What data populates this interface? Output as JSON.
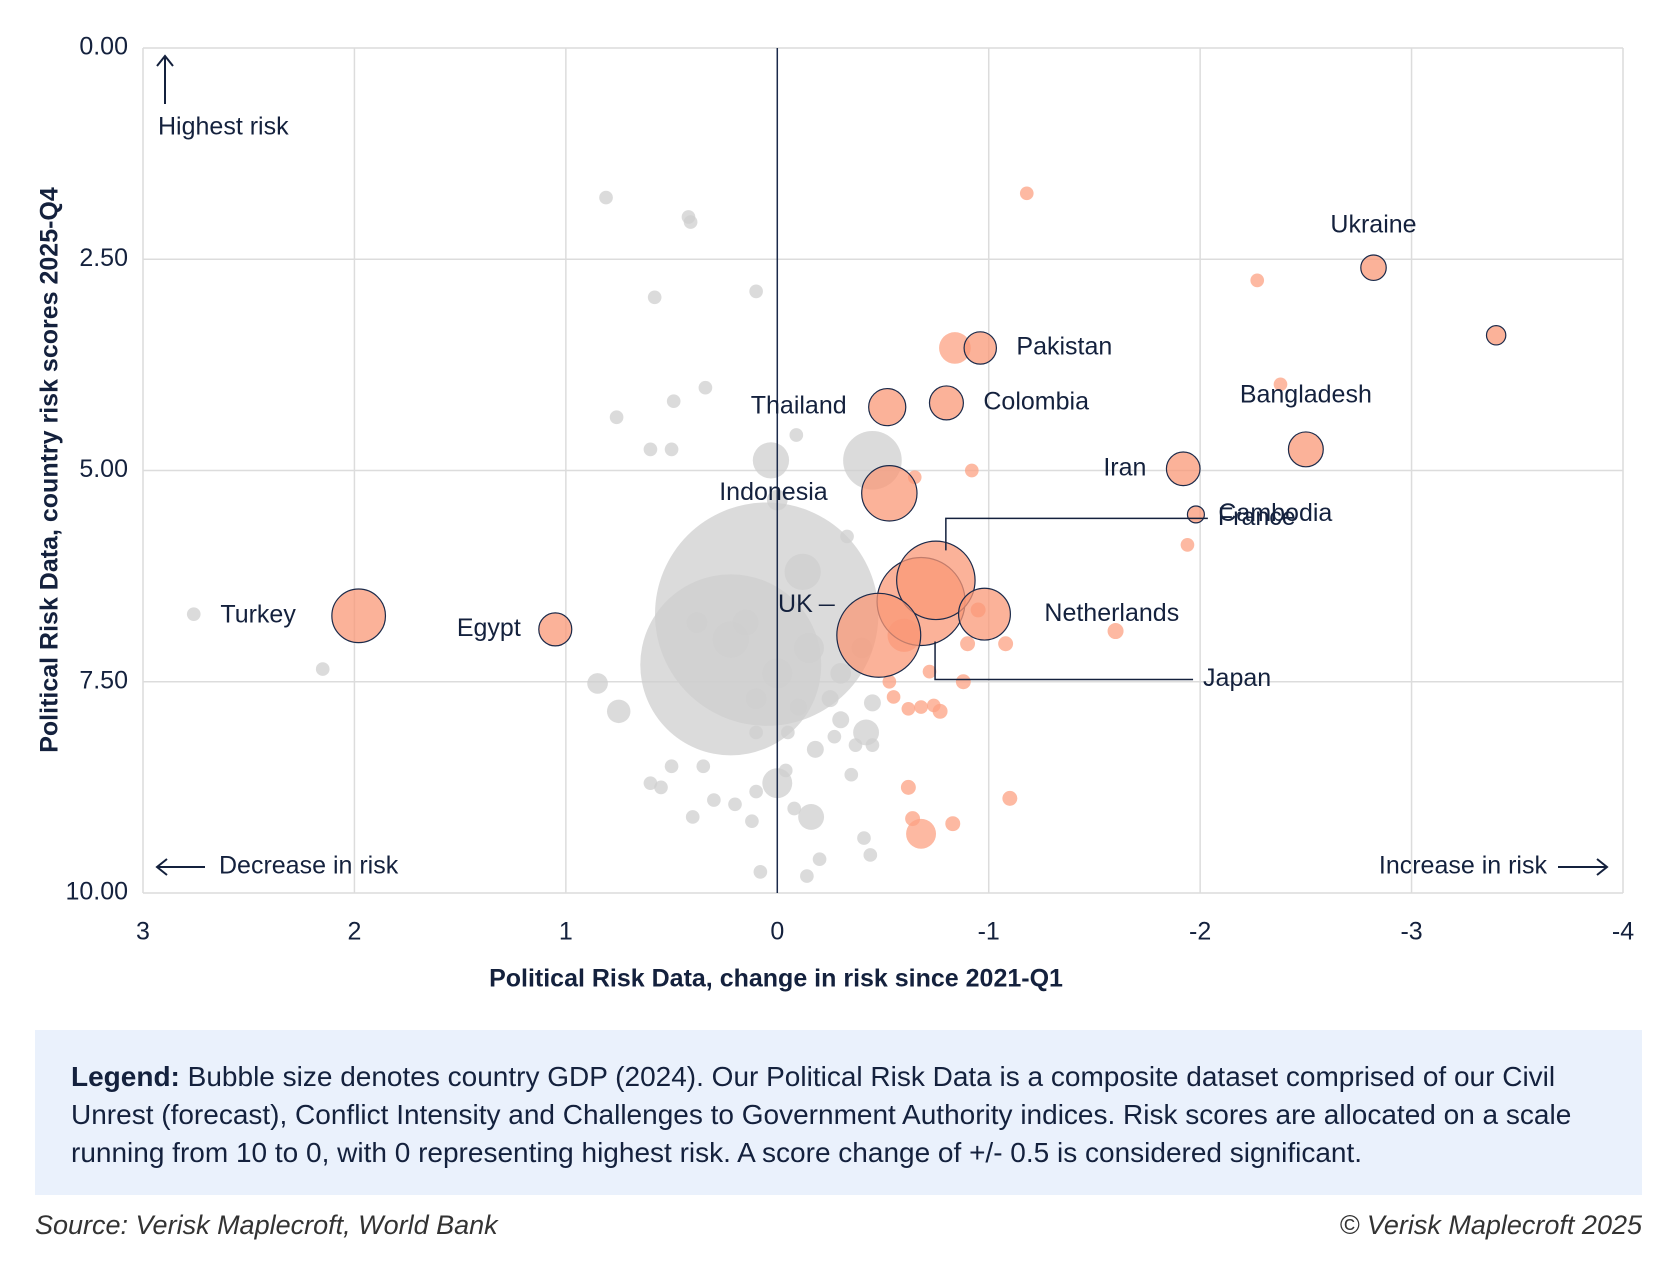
{
  "chart_data": {
    "type": "scatter",
    "y_axis_label": "Political Risk Data, country risk scores 2025-Q4",
    "x_axis_label": "Political Risk Data, change in risk since 2021-Q1",
    "annotations": {
      "top_left": "Highest risk",
      "bottom_left": "Decrease in risk",
      "bottom_right": "Increase in risk"
    },
    "xlim": [
      3,
      -4
    ],
    "ylim": [
      0,
      10
    ],
    "xticks": [
      3,
      2,
      1,
      0,
      -1,
      -2,
      -3,
      -4
    ],
    "yticks": [
      {
        "value": 0,
        "label": "0.00"
      },
      {
        "value": 2.5,
        "label": "2.50"
      },
      {
        "value": 5,
        "label": "5.00"
      },
      {
        "value": 7.5,
        "label": "7.50"
      },
      {
        "value": 10,
        "label": "10.00"
      }
    ],
    "grid": true,
    "series": [
      {
        "color": "#cfcfcf",
        "x": [
          0.05,
          0.22,
          -0.45,
          0.03,
          -0.12,
          0.0,
          0.81,
          0.42,
          0.41,
          0.58,
          0.1,
          0.34,
          0.49,
          0.76,
          0.6,
          0.5,
          -0.09,
          -0.33,
          2.76,
          2.15,
          0.85,
          0.75,
          0.38,
          0.22,
          0.15,
          -0.15,
          -0.3,
          -0.4,
          0.0,
          0.1,
          -0.1,
          -0.25,
          -0.45,
          -0.42,
          -0.45,
          -0.37,
          0.0,
          0.35,
          0.5,
          0.55,
          0.1,
          0.2,
          0.3,
          -0.08,
          -0.16,
          0.4,
          0.12,
          0.08,
          -0.41,
          -0.44,
          -0.2,
          -0.14,
          0.6,
          -0.04,
          -0.35,
          -0.18,
          0.1,
          -0.05,
          -0.27,
          -0.3
        ],
        "values": [
          6.7,
          7.3,
          4.88,
          4.88,
          6.2,
          5.35,
          1.77,
          2.0,
          2.06,
          2.95,
          2.88,
          4.02,
          4.18,
          4.37,
          4.75,
          4.75,
          4.58,
          5.78,
          6.7,
          7.35,
          7.52,
          7.85,
          6.8,
          7.0,
          6.8,
          7.1,
          7.4,
          7.1,
          7.4,
          7.7,
          7.8,
          7.7,
          7.75,
          8.1,
          8.25,
          8.25,
          8.7,
          8.5,
          8.5,
          8.75,
          8.8,
          8.95,
          8.9,
          9.0,
          9.1,
          9.1,
          9.15,
          9.75,
          9.35,
          9.55,
          9.6,
          9.8,
          8.7,
          8.55,
          8.6,
          8.3,
          8.1,
          8.1,
          8.15,
          7.95
        ],
        "sizes": [
          29,
          18.7,
          1.6,
          0.5,
          0.5,
          0.1,
          0.02,
          0.02,
          0.02,
          0.02,
          0.02,
          0.02,
          0.02,
          0.02,
          0.02,
          0.02,
          0.02,
          0.02,
          0.02,
          0.02,
          0.1,
          0.15,
          0.1,
          0.5,
          0.2,
          0.3,
          0.1,
          0.1,
          0.3,
          0.1,
          0.05,
          0.05,
          0.05,
          0.2,
          0.02,
          0.02,
          0.3,
          0.02,
          0.02,
          0.02,
          0.02,
          0.02,
          0.02,
          0.02,
          0.2,
          0.02,
          0.02,
          0.02,
          0.02,
          0.02,
          0.02,
          0.02,
          0.02,
          0.02,
          0.02,
          0.05,
          0.02,
          0.02,
          0.02,
          0.05
        ]
      },
      {
        "color": "#fca283",
        "x": [
          -1.18,
          -2.27,
          -2.38,
          -0.92,
          -0.65,
          -1.94,
          -1.6,
          -1.08,
          -0.84,
          -0.88,
          -0.62,
          -0.68,
          -0.74,
          -0.77,
          -0.62,
          -0.64,
          -0.68,
          -0.83,
          -1.1,
          -0.55,
          -0.53,
          -0.72,
          -0.9,
          -0.95,
          -0.6
        ],
        "values": [
          1.72,
          2.75,
          3.98,
          5.0,
          5.08,
          5.88,
          6.9,
          7.05,
          3.55,
          7.5,
          7.82,
          7.8,
          7.78,
          7.85,
          8.75,
          9.12,
          9.3,
          9.18,
          8.88,
          7.68,
          7.5,
          7.38,
          7.05,
          6.65,
          6.95
        ],
        "sizes": [
          0.02,
          0.02,
          0.02,
          0.02,
          0.02,
          0.02,
          0.04,
          0.03,
          0.35,
          0.03,
          0.02,
          0.02,
          0.02,
          0.03,
          0.03,
          0.03,
          0.3,
          0.03,
          0.03,
          0.02,
          0.02,
          0.02,
          0.03,
          0.03,
          0.4
        ]
      },
      {
        "color": "#f99877",
        "x": [
          -0.68,
          -0.75,
          -0.48,
          -0.53,
          -0.98,
          1.98,
          1.05,
          -0.52,
          -0.8,
          -0.96,
          -1.92,
          -2.5,
          -1.98,
          -2.82,
          -3.4
        ],
        "values": [
          6.55,
          6.3,
          6.95,
          5.27,
          6.7,
          6.72,
          6.88,
          4.25,
          4.2,
          3.55,
          4.98,
          4.75,
          5.52,
          2.6,
          3.4
        ],
        "sizes": [
          4.0,
          3.1,
          3.6,
          1.4,
          1.2,
          1.3,
          0.39,
          0.53,
          0.42,
          0.37,
          0.41,
          0.45,
          0.05,
          0.19,
          0.08
        ],
        "labels": [
          "Japan",
          "France",
          "UK",
          "Indonesia",
          "Netherlands",
          "Turkey",
          "Egypt",
          "Thailand",
          "Colombia",
          "Pakistan",
          "Iran",
          "Bangladesh",
          "Cambodia",
          "Ukraine",
          null
        ]
      }
    ]
  },
  "legend_note": {
    "label": "Legend:",
    "text": "Bubble size denotes country GDP (2024). Our Political Risk Data is a composite dataset comprised of our Civil Unrest (forecast), Conflict Intensity and Challenges to Government Authority indices. Risk scores are allocated on a scale running from 10 to 0, with 0 representing highest risk. A score change of +/- 0.5 is considered significant."
  },
  "footer": {
    "source": "Source: Verisk Maplecroft, World Bank",
    "copyright": "© Verisk Maplecroft 2025"
  }
}
